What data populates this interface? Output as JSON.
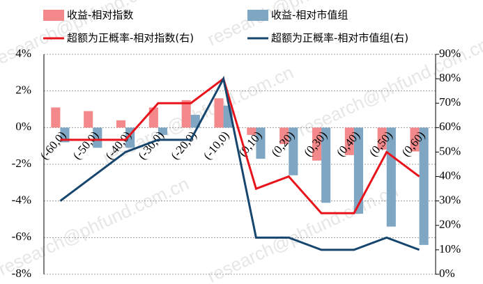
{
  "chart_data": {
    "type": "bar-line",
    "watermark": "research@phfund.com.cn",
    "categories": [
      "(-60,0)",
      "(-50,0)",
      "(-40,0)",
      "(-30,0)",
      "(-20,0)",
      "(-10,0)",
      "(0,10)",
      "(0,20)",
      "(0,30)",
      "(0,40)",
      "(0,50)",
      "(0,60)"
    ],
    "series": [
      {
        "name": "收益-相对指数",
        "kind": "bar",
        "color": "#f4898b",
        "values": [
          1.1,
          0.9,
          0.4,
          1.1,
          1.5,
          1.6,
          -0.4,
          -0.9,
          -1.8,
          -1.5,
          -1.2,
          -1.3
        ]
      },
      {
        "name": "收益-相对市值组",
        "kind": "bar",
        "color": "#7fa6c3",
        "values": [
          -0.8,
          -1.1,
          -1.1,
          -0.4,
          0.7,
          1.2,
          -1.7,
          -2.6,
          -4.1,
          -4.7,
          -5.4,
          -6.4
        ]
      },
      {
        "name": "超额为正概率-相对指数(右)",
        "kind": "line",
        "axis": "y2",
        "color": "#e8141c",
        "values": [
          55,
          55,
          55,
          70,
          70,
          80,
          35,
          40,
          25,
          25,
          50,
          40
        ]
      },
      {
        "name": "超额为正概率-相对市值组(右)",
        "kind": "line",
        "axis": "y2",
        "color": "#16456e",
        "values": [
          30,
          40,
          50,
          55,
          55,
          80,
          15,
          15,
          10,
          10,
          15,
          10
        ]
      }
    ],
    "ylim": [
      -8,
      4
    ],
    "yticks": [
      {
        "value": -8,
        "label": "-8%"
      },
      {
        "value": -6,
        "label": "-6%"
      },
      {
        "value": -4,
        "label": "-4%"
      },
      {
        "value": -2,
        "label": "-2%"
      },
      {
        "value": 0,
        "label": "0%"
      },
      {
        "value": 2,
        "label": "2%"
      },
      {
        "value": 4,
        "label": "4%"
      }
    ],
    "y2lim": [
      0,
      90
    ],
    "y2ticks": [
      {
        "value": 0,
        "label": "0%"
      },
      {
        "value": 10,
        "label": "10%"
      },
      {
        "value": 20,
        "label": "20%"
      },
      {
        "value": 30,
        "label": "30%"
      },
      {
        "value": 40,
        "label": "40%"
      },
      {
        "value": 50,
        "label": "50%"
      },
      {
        "value": 60,
        "label": "60%"
      },
      {
        "value": 70,
        "label": "70%"
      },
      {
        "value": 80,
        "label": "80%"
      },
      {
        "value": 90,
        "label": "90%"
      }
    ],
    "grid": true
  }
}
